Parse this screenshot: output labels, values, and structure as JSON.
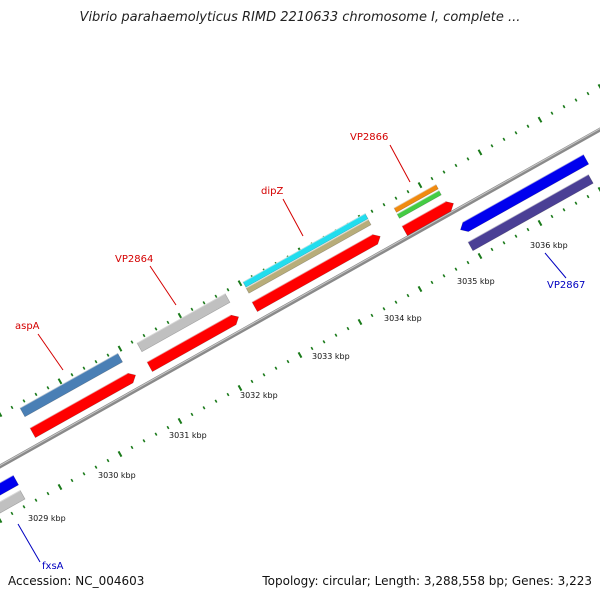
{
  "title": "Vibrio parahaemolyticus RIMD 2210633 chromosome I, complete ...",
  "footer": {
    "accession": "Accession: NC_004603",
    "summary": "Topology: circular; Length: 3,288,558 bp; Genes: 3,223"
  },
  "scale": {
    "unit": "kbp",
    "tick_labels": [
      "3029 kbp",
      "3030 kbp",
      "3031 kbp",
      "3032 kbp",
      "3033 kbp",
      "3034 kbp",
      "3035 kbp",
      "3036 kbp"
    ]
  },
  "gene_labels": [
    {
      "text": "aspA",
      "color": "#d40000",
      "strand": "forward"
    },
    {
      "text": "VP2864",
      "color": "#d40000",
      "strand": "forward"
    },
    {
      "text": "dipZ",
      "color": "#d40000",
      "strand": "forward"
    },
    {
      "text": "VP2866",
      "color": "#d40000",
      "strand": "forward"
    },
    {
      "text": "VP2867",
      "color": "#0000c0",
      "strand": "reverse"
    },
    {
      "text": "fxsA",
      "color": "#0000c0",
      "strand": "reverse"
    }
  ],
  "colors": {
    "backbone": "#8a8a8a",
    "forward_cds": "#ff0000",
    "reverse_cds": "#0000ee",
    "tick": "#1a7a1a",
    "feature_steelblue": "#4a7fb5",
    "feature_gray": "#c0c0c0",
    "feature_cyan": "#22ddee",
    "feature_khaki": "#b8ad7a",
    "feature_orange": "#f08a10",
    "feature_green": "#44cc44",
    "feature_slate": "#4a3f95"
  }
}
